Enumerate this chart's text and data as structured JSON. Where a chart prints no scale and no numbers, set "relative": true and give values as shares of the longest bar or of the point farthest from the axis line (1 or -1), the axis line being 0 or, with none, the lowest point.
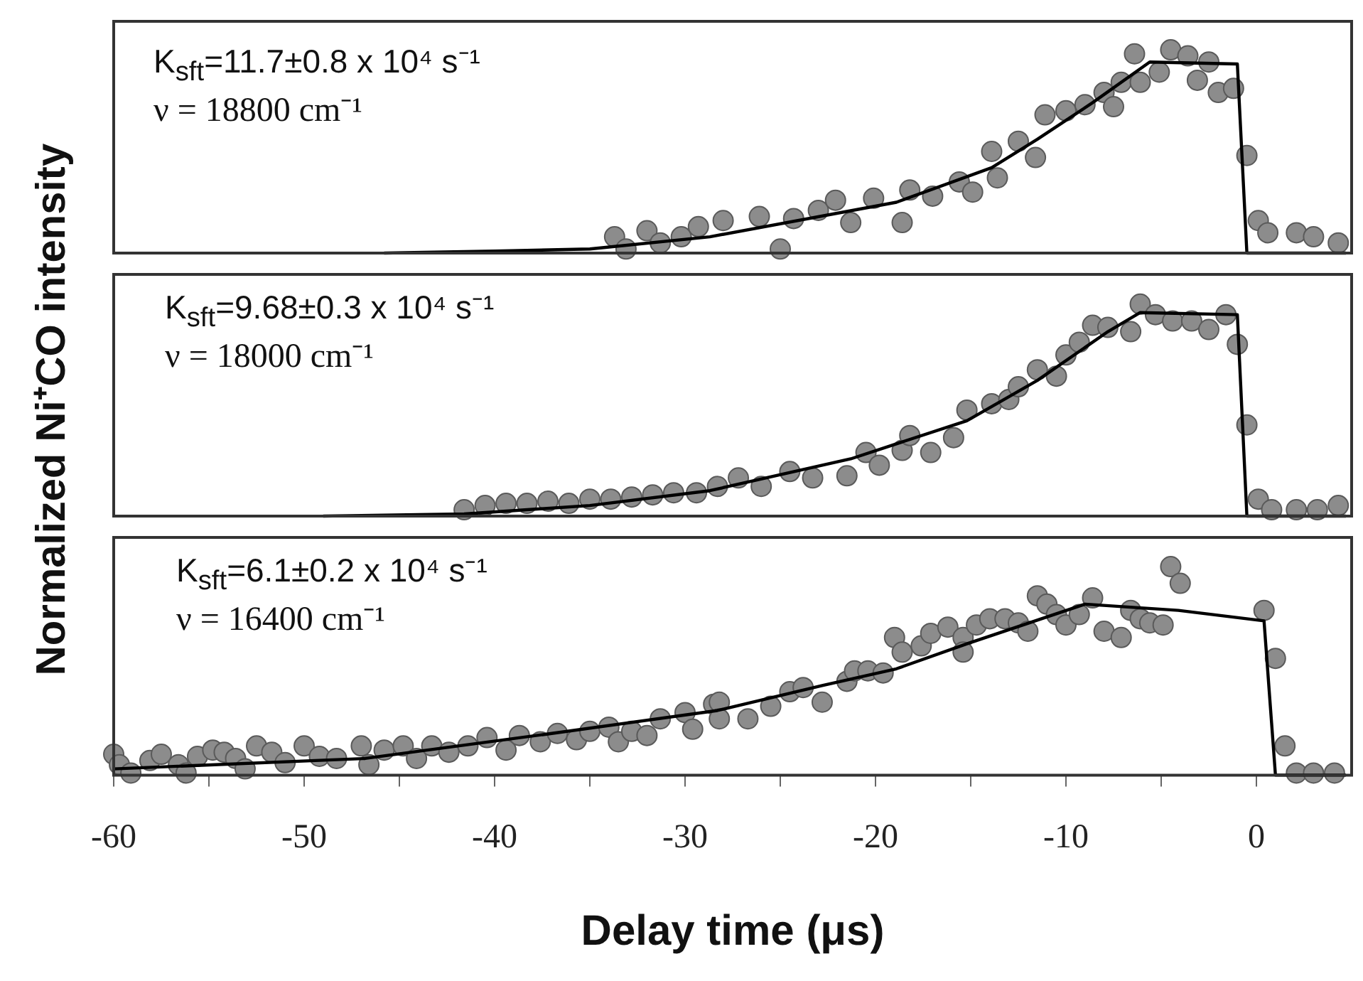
{
  "chart_data": [
    {
      "type": "scatter",
      "relative": true,
      "xlim": [
        -60,
        5
      ],
      "tick_labels": false,
      "annotations": [
        "K$_{sft}$=11.7±0.8 x 10⁴ s⁻¹",
        "ν = 18800 cm⁻¹"
      ],
      "series": [
        {
          "type": "scatter",
          "color": "#8c8c8c",
          "marker": "circle",
          "x": [
            -33.7,
            -33.1,
            -32.0,
            -31.3,
            -30.2,
            -29.3,
            -28.0,
            -26.1,
            -25.0,
            -24.3,
            -23.0,
            -22.1,
            -21.3,
            -20.1,
            -18.6,
            -18.2,
            -17.0,
            -15.6,
            -14.9,
            -13.9,
            -13.6,
            -12.5,
            -11.6,
            -11.1,
            -10.0,
            -9.0,
            -8.0,
            -7.5,
            -7.1,
            -6.4,
            -6.1,
            -5.1,
            -4.5,
            -3.6,
            -3.1,
            -2.5,
            -2.0,
            -1.2,
            -0.5,
            0.1,
            0.6,
            2.1,
            3.0,
            4.3
          ],
          "values": [
            0.08,
            0.02,
            0.11,
            0.05,
            0.08,
            0.13,
            0.16,
            0.18,
            0.02,
            0.17,
            0.21,
            0.26,
            0.15,
            0.27,
            0.15,
            0.31,
            0.28,
            0.35,
            0.3,
            0.5,
            0.37,
            0.55,
            0.47,
            0.68,
            0.7,
            0.73,
            0.79,
            0.72,
            0.84,
            0.98,
            0.84,
            0.89,
            1,
            0.97,
            0.85,
            0.94,
            0.79,
            0.81,
            0.48,
            0.16,
            0.1,
            0.1,
            0.08,
            0.05
          ]
        },
        {
          "type": "line",
          "color": "#000000",
          "marker": "none",
          "x": [
            -45.8,
            -40,
            -35,
            -28.7,
            -18.9,
            -13.9,
            -11.5,
            -8.6,
            -5.6,
            -1.0,
            -0.5,
            4.7
          ],
          "values": [
            0,
            0.01,
            0.02,
            0.08,
            0.25,
            0.42,
            0.56,
            0.74,
            0.94,
            0.93,
            0,
            0
          ]
        }
      ]
    },
    {
      "type": "scatter",
      "relative": true,
      "xlim": [
        -60,
        5
      ],
      "tick_labels": false,
      "ylabel": "Normalized Ni⁺CO intensity",
      "annotations": [
        "K$_{sft}$=9.68±0.3 x 10⁴ s⁻¹",
        "ν = 18000 cm⁻¹"
      ],
      "series": [
        {
          "type": "scatter",
          "color": "#8c8c8c",
          "marker": "circle",
          "x": [
            -41.6,
            -40.5,
            -39.4,
            -38.3,
            -37.2,
            -36.1,
            -35.0,
            -33.9,
            -32.8,
            -31.7,
            -30.6,
            -29.4,
            -28.3,
            -27.2,
            -26.0,
            -24.5,
            -23.3,
            -21.5,
            -20.5,
            -19.8,
            -18.6,
            -18.2,
            -17.1,
            -15.9,
            -15.2,
            -13.9,
            -13.0,
            -12.5,
            -11.5,
            -10.5,
            -10.0,
            -9.3,
            -8.6,
            -7.8,
            -6.6,
            -6.1,
            -5.3,
            -4.4,
            -3.4,
            -2.5,
            -1.6,
            -1.0,
            -0.5,
            0.1,
            0.8,
            2.1,
            3.2,
            4.3
          ],
          "values": [
            0.03,
            0.05,
            0.06,
            0.06,
            0.07,
            0.06,
            0.08,
            0.08,
            0.09,
            0.1,
            0.11,
            0.11,
            0.14,
            0.18,
            0.14,
            0.21,
            0.18,
            0.19,
            0.3,
            0.24,
            0.31,
            0.38,
            0.3,
            0.37,
            0.5,
            0.53,
            0.55,
            0.61,
            0.69,
            0.66,
            0.76,
            0.82,
            0.9,
            0.89,
            0.87,
            1,
            0.95,
            0.92,
            0.92,
            0.88,
            0.95,
            0.81,
            0.43,
            0.08,
            0.03,
            0.03,
            0.03,
            0.05
          ]
        },
        {
          "type": "line",
          "color": "#000000",
          "marker": "none",
          "x": [
            -49.0,
            -41.6,
            -35.0,
            -28.7,
            -21.3,
            -15.2,
            -11.5,
            -7.8,
            -6.1,
            -1.0,
            -0.5,
            4.7
          ],
          "values": [
            0,
            0.01,
            0.05,
            0.12,
            0.27,
            0.45,
            0.64,
            0.87,
            0.96,
            0.95,
            0,
            0
          ]
        }
      ]
    },
    {
      "type": "scatter",
      "relative": true,
      "xlim": [
        -60,
        5
      ],
      "tick_labels": "x",
      "xlabel": "Delay time (μs)",
      "xticks": [
        -60,
        {
          "value": -55,
          "label": null
        },
        -50,
        {
          "value": -45,
          "label": null
        },
        -40,
        {
          "value": -35,
          "label": null
        },
        -30,
        {
          "value": -25,
          "label": null
        },
        -20,
        {
          "value": -15,
          "label": null
        },
        -10,
        {
          "value": -5,
          "label": null
        },
        0
      ],
      "annotations": [
        "K$_{sft}$=6.1±0.2 x 10⁴ s⁻¹",
        "ν = 16400 cm⁻¹"
      ],
      "series": [
        {
          "type": "scatter",
          "color": "#8c8c8c",
          "marker": "circle",
          "x": [
            -60,
            -59.7,
            -59.1,
            -58.1,
            -57.5,
            -56.6,
            -56.2,
            -55.6,
            -54.8,
            -54.2,
            -53.6,
            -53.1,
            -52.5,
            -51.7,
            -51.0,
            -50.0,
            -49.2,
            -48.3,
            -47.0,
            -46.6,
            -45.8,
            -44.8,
            -44.1,
            -43.3,
            -42.4,
            -41.4,
            -40.4,
            -39.4,
            -38.7,
            -37.6,
            -36.7,
            -35.7,
            -35.0,
            -34.0,
            -33.5,
            -32.8,
            -32.0,
            -31.3,
            -30.0,
            -29.6,
            -28.5,
            -28.2,
            -28.2,
            -26.7,
            -25.5,
            -24.5,
            -23.8,
            -22.8,
            -21.5,
            -21.1,
            -20.4,
            -19.6,
            -19.0,
            -18.6,
            -17.6,
            -17.1,
            -16.2,
            -15.4,
            -15.4,
            -14.7,
            -14.0,
            -13.2,
            -12.5,
            -12.0,
            -11.5,
            -11.0,
            -10.5,
            -10.0,
            -9.3,
            -8.6,
            -8.0,
            -7.1,
            -6.6,
            -6.1,
            -5.6,
            -4.9,
            -4.5,
            -4.0,
            0.4,
            1.0,
            1.5,
            2.1,
            3.0,
            4.1
          ],
          "values": [
            0.1,
            0.05,
            0.01,
            0.07,
            0.1,
            0.05,
            0.01,
            0.09,
            0.12,
            0.11,
            0.08,
            0.03,
            0.14,
            0.11,
            0.06,
            0.14,
            0.09,
            0.08,
            0.14,
            0.05,
            0.12,
            0.14,
            0.08,
            0.14,
            0.11,
            0.14,
            0.18,
            0.12,
            0.19,
            0.16,
            0.2,
            0.17,
            0.21,
            0.23,
            0.16,
            0.21,
            0.19,
            0.27,
            0.3,
            0.22,
            0.34,
            0.35,
            0.27,
            0.27,
            0.33,
            0.4,
            0.42,
            0.35,
            0.45,
            0.5,
            0.5,
            0.49,
            0.66,
            0.59,
            0.62,
            0.68,
            0.71,
            0.66,
            0.59,
            0.72,
            0.75,
            0.75,
            0.73,
            0.69,
            0.86,
            0.82,
            0.77,
            0.72,
            0.77,
            0.85,
            0.69,
            0.66,
            0.79,
            0.75,
            0.73,
            0.72,
            1,
            0.92,
            0.79,
            0.56,
            0.14,
            0.01,
            0.01,
            0.01
          ]
        },
        {
          "type": "line",
          "color": "#000000",
          "marker": "none",
          "x": [
            -60,
            -46.8,
            -37.0,
            -28.3,
            -22.8,
            -18.9,
            -15.2,
            -9.0,
            -4.1,
            0.4,
            1.0,
            4.7
          ],
          "values": [
            0.03,
            0.08,
            0.2,
            0.31,
            0.43,
            0.51,
            0.63,
            0.82,
            0.79,
            0.74,
            0,
            0
          ]
        }
      ]
    }
  ]
}
